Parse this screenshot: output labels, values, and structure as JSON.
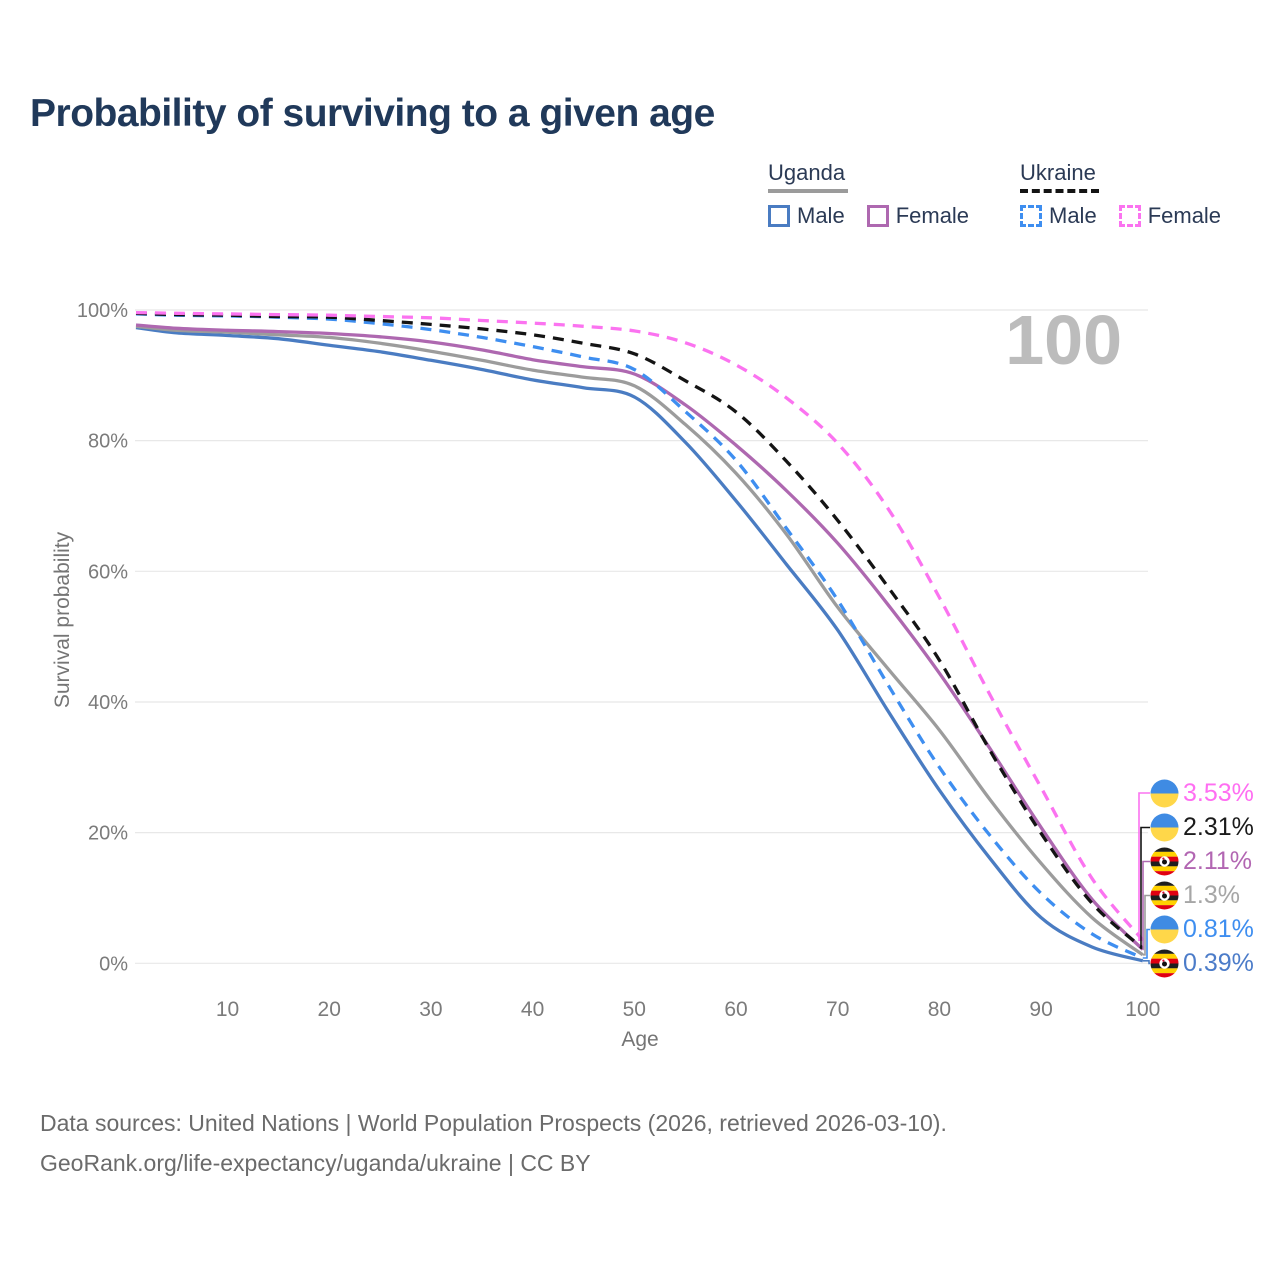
{
  "title": "Probability of surviving to a given age",
  "watermark": "100",
  "legend": {
    "groups": [
      {
        "name": "Uganda",
        "underline": "solid",
        "underline_color": "#9b9b9b",
        "items": [
          {
            "label": "Male",
            "color": "#4A7CC2",
            "dash": "solid"
          },
          {
            "label": "Female",
            "color": "#AE68B0",
            "dash": "solid"
          }
        ]
      },
      {
        "name": "Ukraine",
        "underline": "dashed",
        "underline_color": "#141414",
        "items": [
          {
            "label": "Male",
            "color": "#3E8EF0",
            "dash": "dashed"
          },
          {
            "label": "Female",
            "color": "#FB73F0",
            "dash": "dashed"
          }
        ]
      }
    ]
  },
  "chart_data": {
    "type": "line",
    "title": "Probability of surviving to a given age",
    "xlabel": "Age",
    "ylabel": "Survival probability",
    "xlim": [
      1,
      100
    ],
    "ylim": [
      0,
      100
    ],
    "grid": "horizontal",
    "x_ticks": [
      10,
      20,
      30,
      40,
      50,
      60,
      70,
      80,
      90,
      100
    ],
    "y_ticks": [
      0,
      20,
      40,
      60,
      80,
      100
    ],
    "y_tick_labels": [
      "0%",
      "20%",
      "40%",
      "60%",
      "80%",
      "100%"
    ],
    "x": [
      1,
      5,
      10,
      15,
      20,
      25,
      30,
      35,
      40,
      45,
      50,
      55,
      60,
      65,
      70,
      75,
      80,
      85,
      90,
      95,
      100
    ],
    "series": [
      {
        "id": "uganda-male",
        "name": "Uganda Male",
        "color": "#4A7CC2",
        "dash": "solid",
        "values": [
          97.3,
          96.5,
          96.1,
          95.6,
          94.6,
          93.6,
          92.3,
          90.9,
          89.3,
          88.1,
          86.7,
          79.8,
          70.8,
          61.0,
          51.0,
          38.5,
          26.5,
          16.0,
          7.0,
          2.5,
          0.39
        ]
      },
      {
        "id": "uganda-total",
        "name": "Uganda (both sexes)",
        "color": "#9C9C9C",
        "dash": "solid",
        "values": [
          97.5,
          96.9,
          96.6,
          96.2,
          95.8,
          94.9,
          93.7,
          92.3,
          90.8,
          89.7,
          88.4,
          82.5,
          75.0,
          65.6,
          54.5,
          45.0,
          35.7,
          25.0,
          15.3,
          7.0,
          1.3
        ]
      },
      {
        "id": "uganda-female",
        "name": "Uganda Female",
        "color": "#AE68B0",
        "dash": "solid",
        "values": [
          97.7,
          97.2,
          96.9,
          96.7,
          96.4,
          95.9,
          95.1,
          93.9,
          92.4,
          91.3,
          90.2,
          85.5,
          79.3,
          72.3,
          64.3,
          54.8,
          44.4,
          32.8,
          20.8,
          9.8,
          2.11
        ]
      },
      {
        "id": "ukraine-male",
        "name": "Ukraine Male",
        "color": "#3E8EF0",
        "dash": "dashed",
        "values": [
          99.4,
          99.2,
          99.1,
          98.9,
          98.6,
          97.9,
          97.0,
          95.8,
          94.4,
          92.8,
          90.9,
          84.5,
          77.0,
          66.5,
          55.6,
          42.5,
          30.0,
          19.5,
          10.7,
          4.5,
          0.81
        ]
      },
      {
        "id": "ukraine-total",
        "name": "Ukraine (both sexes)",
        "color": "#141414",
        "dash": "dashed",
        "values": [
          99.5,
          99.3,
          99.2,
          99.0,
          98.9,
          98.4,
          97.8,
          97.1,
          96.2,
          94.9,
          93.3,
          89.2,
          84.4,
          76.8,
          67.8,
          57.5,
          46.4,
          32.5,
          19.9,
          9.2,
          2.31
        ]
      },
      {
        "id": "ukraine-female",
        "name": "Ukraine Female",
        "color": "#FB73F0",
        "dash": "dashed",
        "values": [
          99.6,
          99.5,
          99.4,
          99.3,
          99.2,
          99.0,
          98.8,
          98.4,
          98.0,
          97.5,
          96.8,
          95.0,
          91.6,
          86.5,
          79.6,
          69.5,
          56.0,
          41.0,
          26.9,
          13.0,
          3.53
        ]
      }
    ],
    "end_labels": [
      {
        "value": "3.53%",
        "color": "#FF6EF2",
        "flag": "ukraine",
        "series": "ukraine-female"
      },
      {
        "value": "2.31%",
        "color": "#1A1A1A",
        "flag": "ukraine",
        "series": "ukraine-total"
      },
      {
        "value": "2.11%",
        "color": "#B266B2",
        "flag": "uganda",
        "series": "uganda-female"
      },
      {
        "value": "1.3%",
        "color": "#A6A6A6",
        "flag": "uganda",
        "series": "uganda-total"
      },
      {
        "value": "0.81%",
        "color": "#3E8EF0",
        "flag": "ukraine",
        "series": "ukraine-male"
      },
      {
        "value": "0.39%",
        "color": "#4C7CC9",
        "flag": "uganda",
        "series": "uganda-male"
      }
    ]
  },
  "footer": {
    "line1": "Data sources: United Nations | World Population Prospects (2026, retrieved 2026-03-10).",
    "line2": "GeoRank.org/life-expectancy/uganda/ukraine | CC BY"
  }
}
